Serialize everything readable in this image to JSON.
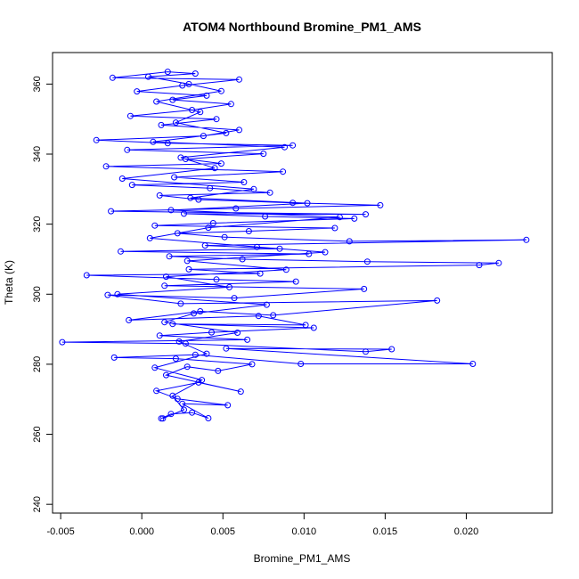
{
  "chart_data": {
    "type": "line",
    "title": "ATOM4 Northbound Bromine_PM1_AMS",
    "xlabel": "Bromine_PM1_AMS",
    "ylabel": "Theta (K)",
    "xlim": [
      -0.0055,
      0.0253
    ],
    "ylim": [
      237.5,
      369
    ],
    "xticks": [
      "-0.005",
      "0.000",
      "0.005",
      "0.010",
      "0.015",
      "0.020"
    ],
    "xtick_values": [
      -0.005,
      0.0,
      0.005,
      0.01,
      0.015,
      0.02
    ],
    "yticks": [
      "240",
      "260",
      "280",
      "300",
      "320",
      "340",
      "360"
    ],
    "ytick_values": [
      240,
      260,
      280,
      300,
      320,
      340,
      360
    ],
    "grid": false,
    "marker": "open-circle",
    "series": [
      {
        "color": "#0000ff",
        "points": [
          [
            0.0012,
            264.5
          ],
          [
            0.0018,
            265.8
          ],
          [
            0.0031,
            266.2
          ],
          [
            0.0041,
            264.6
          ],
          [
            0.0025,
            268.7
          ],
          [
            0.0053,
            268.3
          ],
          [
            0.0022,
            270.1
          ],
          [
            0.0009,
            272.4
          ],
          [
            0.0035,
            274.8
          ],
          [
            0.0061,
            272.2
          ],
          [
            0.0015,
            276.9
          ],
          [
            0.0028,
            279.3
          ],
          [
            0.0047,
            278.1
          ],
          [
            0.0068,
            280.0
          ],
          [
            0.0021,
            281.6
          ],
          [
            -0.0017,
            281.9
          ],
          [
            0.0033,
            282.7
          ],
          [
            0.0098,
            280.1
          ],
          [
            0.0204,
            280.1
          ],
          [
            0.0052,
            284.5
          ],
          [
            0.0154,
            284.3
          ],
          [
            0.0138,
            283.6
          ],
          [
            0.0027,
            285.9
          ],
          [
            -0.0049,
            286.3
          ],
          [
            0.0065,
            287.0
          ],
          [
            0.0011,
            288.2
          ],
          [
            0.0043,
            289.1
          ],
          [
            0.0106,
            290.4
          ],
          [
            0.0019,
            291.5
          ],
          [
            0.0101,
            291.2
          ],
          [
            0.0072,
            293.8
          ],
          [
            -0.0008,
            292.6
          ],
          [
            0.0036,
            295.1
          ],
          [
            0.0081,
            294.0
          ],
          [
            0.0182,
            298.2
          ],
          [
            0.0024,
            297.3
          ],
          [
            -0.0021,
            299.8
          ],
          [
            0.0057,
            298.9
          ],
          [
            0.0137,
            301.5
          ],
          [
            0.0014,
            302.4
          ],
          [
            0.0095,
            303.6
          ],
          [
            0.0046,
            304.2
          ],
          [
            -0.0034,
            305.4
          ],
          [
            0.0073,
            305.9
          ],
          [
            0.0029,
            307.1
          ],
          [
            0.0208,
            308.3
          ],
          [
            0.022,
            308.9
          ],
          [
            0.0139,
            309.3
          ],
          [
            0.0062,
            310.0
          ],
          [
            0.0017,
            310.8
          ],
          [
            0.0103,
            311.5
          ],
          [
            -0.0013,
            312.2
          ],
          [
            0.0085,
            313.0
          ],
          [
            0.0039,
            313.9
          ],
          [
            0.0237,
            315.5
          ],
          [
            0.0128,
            315.1
          ],
          [
            0.0051,
            316.3
          ],
          [
            0.0022,
            317.4
          ],
          [
            0.0066,
            318.0
          ],
          [
            0.0119,
            318.9
          ],
          [
            0.0008,
            319.6
          ],
          [
            0.0044,
            320.3
          ],
          [
            0.0131,
            321.6
          ],
          [
            0.0076,
            322.2
          ],
          [
            0.0026,
            323.0
          ],
          [
            0.0138,
            322.8
          ],
          [
            -0.0019,
            323.7
          ],
          [
            0.0058,
            324.5
          ],
          [
            0.0147,
            325.4
          ],
          [
            0.0093,
            326.1
          ],
          [
            0.0035,
            327.0
          ],
          [
            0.0011,
            328.2
          ],
          [
            0.0079,
            329.0
          ],
          [
            0.0042,
            330.3
          ],
          [
            -0.0006,
            331.2
          ],
          [
            0.0063,
            332.0
          ],
          [
            0.002,
            333.4
          ],
          [
            0.0087,
            335.0
          ],
          [
            -0.0022,
            336.5
          ],
          [
            0.0049,
            337.3
          ],
          [
            0.0027,
            338.6
          ],
          [
            0.0075,
            340.1
          ],
          [
            -0.0009,
            341.2
          ],
          [
            0.0093,
            342.5
          ],
          [
            0.0016,
            343.1
          ],
          [
            -0.0028,
            344.0
          ],
          [
            0.0038,
            345.2
          ],
          [
            0.006,
            346.9
          ],
          [
            0.0012,
            348.3
          ],
          [
            0.0046,
            350.0
          ],
          [
            -0.0007,
            350.9
          ],
          [
            0.0031,
            352.6
          ],
          [
            0.0055,
            354.3
          ],
          [
            0.0019,
            355.5
          ],
          [
            0.004,
            356.7
          ],
          [
            -0.0003,
            357.9
          ],
          [
            0.0025,
            359.6
          ],
          [
            0.006,
            361.3
          ],
          [
            -0.0018,
            361.8
          ],
          [
            0.0016,
            363.5
          ],
          [
            0.0033,
            363.0
          ],
          [
            0.0004,
            362.1
          ],
          [
            0.0029,
            360.0
          ],
          [
            0.0049,
            358.0
          ],
          [
            0.0009,
            355.0
          ],
          [
            0.0036,
            352.0
          ],
          [
            0.0021,
            349.0
          ],
          [
            0.0052,
            346.0
          ],
          [
            0.0007,
            343.5
          ],
          [
            0.0088,
            342.0
          ],
          [
            0.0024,
            339.0
          ],
          [
            0.0045,
            336.0
          ],
          [
            -0.0012,
            333.0
          ],
          [
            0.0069,
            330.0
          ],
          [
            0.003,
            327.5
          ],
          [
            0.0102,
            326.0
          ],
          [
            0.0018,
            324.0
          ],
          [
            0.0122,
            322.0
          ],
          [
            0.0041,
            319.0
          ],
          [
            0.0005,
            316.0
          ],
          [
            0.0071,
            313.5
          ],
          [
            0.0113,
            312.0
          ],
          [
            0.0028,
            309.5
          ],
          [
            0.0089,
            307.0
          ],
          [
            0.0015,
            305.0
          ],
          [
            0.0054,
            302.0
          ],
          [
            -0.0015,
            300.0
          ],
          [
            0.0077,
            297.0
          ],
          [
            0.0032,
            294.5
          ],
          [
            0.0014,
            292.0
          ],
          [
            0.0059,
            289.0
          ],
          [
            0.0023,
            286.5
          ],
          [
            0.004,
            283.0
          ],
          [
            0.0008,
            279.0
          ],
          [
            0.0037,
            275.5
          ],
          [
            0.0019,
            271.0
          ],
          [
            0.0026,
            267.0
          ],
          [
            0.0013,
            264.5
          ]
        ]
      }
    ]
  }
}
